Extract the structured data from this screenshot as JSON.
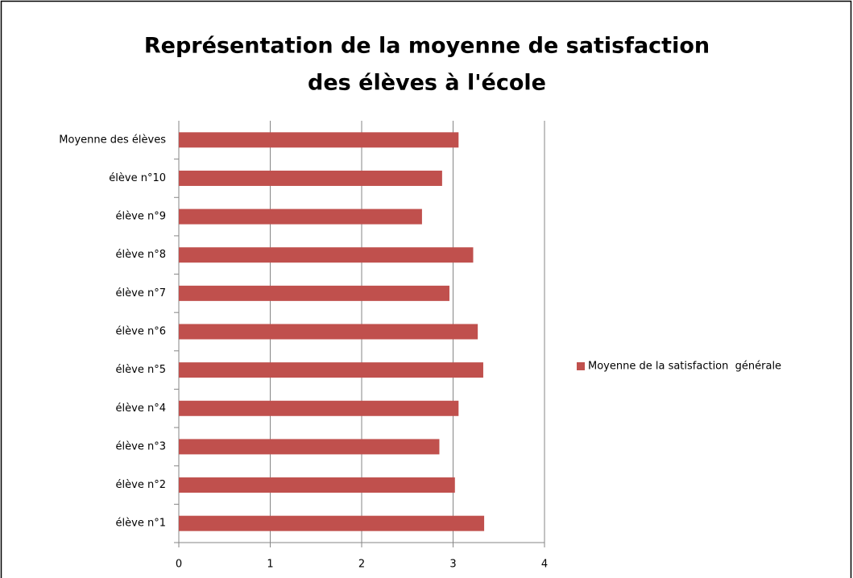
{
  "chart_data": {
    "type": "hbar",
    "title": [
      "Représentation de la moyenne de satisfaction",
      "des élèves à l'école"
    ],
    "categories": [
      "élève n°1",
      "élève n°2",
      "élève n°3",
      "élève n°4",
      "élève n°5",
      "élève n°6",
      "élève n°7",
      "élève n°8",
      "élève n°9",
      "élève n°10",
      "Moyenne des élèves"
    ],
    "series": [
      {
        "name": "Moyenne de la satisfaction  générale",
        "color": "#c0504d",
        "values": [
          3.34,
          3.02,
          2.85,
          3.06,
          3.33,
          3.27,
          2.96,
          3.22,
          2.66,
          2.88,
          3.06
        ]
      }
    ],
    "xlim": [
      0,
      4
    ],
    "xticks": [
      0,
      1,
      2,
      3,
      4
    ],
    "grid": true,
    "legend": "right"
  }
}
